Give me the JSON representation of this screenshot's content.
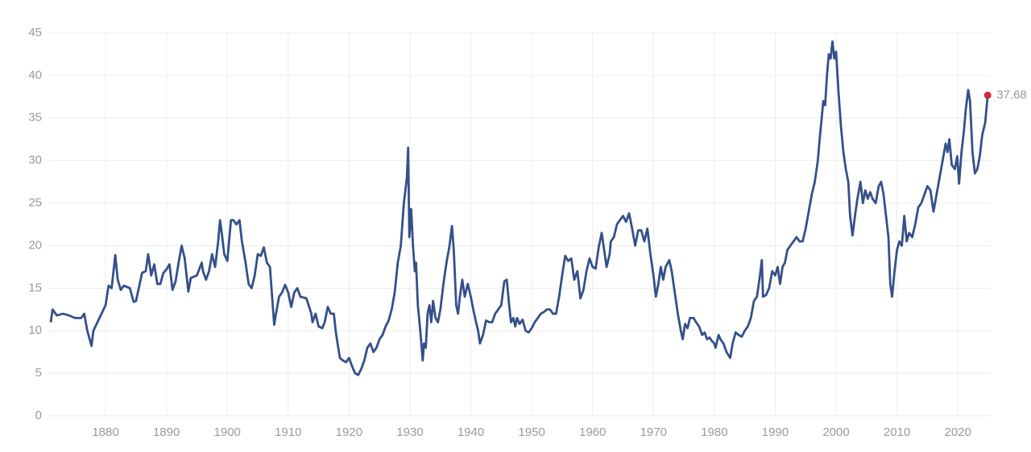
{
  "chart_data": {
    "type": "line",
    "x": [
      1871,
      1871.3,
      1872,
      1873,
      1874,
      1875,
      1876,
      1876.5,
      1877,
      1877.7,
      1878,
      1879,
      1880,
      1880.5,
      1881,
      1881.6,
      1882,
      1882.5,
      1883,
      1884,
      1884.6,
      1885,
      1886,
      1886.6,
      1887,
      1887.5,
      1888,
      1888.5,
      1889,
      1889.5,
      1890,
      1890.5,
      1891,
      1891.5,
      1892,
      1892.5,
      1893,
      1893.6,
      1894,
      1895,
      1895.8,
      1896,
      1896.5,
      1897,
      1897.5,
      1898,
      1898.5,
      1898.8,
      1899,
      1899.5,
      1900,
      1900.6,
      1901,
      1901.5,
      1902,
      1902.4,
      1903,
      1903.5,
      1904,
      1904.5,
      1905,
      1905.5,
      1906,
      1906.5,
      1907,
      1907.7,
      1908,
      1908.5,
      1909,
      1909.5,
      1910,
      1910.5,
      1911,
      1911.5,
      1912,
      1913,
      1913.8,
      1914,
      1914.5,
      1915,
      1915.6,
      1916,
      1916.5,
      1917,
      1917.5,
      1917.8,
      1918,
      1918.5,
      1919,
      1919.5,
      1920,
      1920.4,
      1920.8,
      1921,
      1921.5,
      1922,
      1922.5,
      1923,
      1923.5,
      1924,
      1924.5,
      1925,
      1925.5,
      1926,
      1926.5,
      1927,
      1927.5,
      1928,
      1928.5,
      1928.7,
      1929,
      1929.5,
      1929.7,
      1929.9,
      1930.2,
      1930.5,
      1930.8,
      1931,
      1931.3,
      1931.7,
      1932.1,
      1932.3,
      1932.6,
      1932.9,
      1933.2,
      1933.5,
      1933.8,
      1934.2,
      1934.6,
      1935,
      1935.5,
      1936,
      1936.5,
      1936.9,
      1937.2,
      1937.6,
      1937.9,
      1938.2,
      1938.6,
      1939,
      1939.5,
      1940,
      1940.4,
      1940.8,
      1941.2,
      1941.5,
      1942,
      1942.5,
      1943,
      1943.5,
      1944,
      1944.5,
      1945,
      1945.5,
      1945.9,
      1946.3,
      1946.6,
      1947,
      1947.3,
      1947.6,
      1948,
      1948.5,
      1949,
      1949.5,
      1950,
      1950.5,
      1951,
      1951.5,
      1952,
      1952.5,
      1953,
      1953.5,
      1954,
      1954.5,
      1955,
      1955.5,
      1956,
      1956.5,
      1957,
      1957.5,
      1958,
      1958.5,
      1959,
      1959.5,
      1960,
      1960.5,
      1961,
      1961.5,
      1962,
      1962.3,
      1962.8,
      1963,
      1963.5,
      1964,
      1964.5,
      1965,
      1965.5,
      1966,
      1966.5,
      1967,
      1967.5,
      1968,
      1968.5,
      1969,
      1969.5,
      1970,
      1970.4,
      1970.8,
      1971.2,
      1971.6,
      1972,
      1972.6,
      1973,
      1973.5,
      1974,
      1974.5,
      1974.8,
      1975.2,
      1975.6,
      1976,
      1976.6,
      1977,
      1977.5,
      1978,
      1978.4,
      1978.8,
      1979.2,
      1979.6,
      1980,
      1980.2,
      1980.7,
      1981,
      1981.5,
      1982,
      1982.6,
      1983,
      1983.5,
      1984,
      1984.5,
      1985,
      1985.5,
      1986,
      1986.5,
      1987,
      1987.5,
      1987.8,
      1988,
      1988.5,
      1989,
      1989.5,
      1990,
      1990.4,
      1990.8,
      1991.2,
      1991.6,
      1992,
      1992.5,
      1993,
      1993.5,
      1994,
      1994.5,
      1995,
      1995.5,
      1996,
      1996.5,
      1997,
      1997.3,
      1997.7,
      1997.9,
      1998.2,
      1998.5,
      1998.8,
      1999.1,
      1999.4,
      1999.7,
      2000,
      2000.4,
      2000.8,
      2001.2,
      2001.6,
      2002,
      2002.3,
      2002.7,
      2003.1,
      2003.5,
      2004,
      2004.4,
      2004.8,
      2005.2,
      2005.6,
      2006,
      2006.5,
      2007,
      2007.4,
      2007.8,
      2008.2,
      2008.6,
      2008.9,
      2009.2,
      2009.6,
      2010,
      2010.4,
      2010.8,
      2011.2,
      2011.6,
      2012,
      2012.5,
      2013,
      2013.5,
      2014,
      2014.5,
      2015,
      2015.5,
      2016,
      2016.5,
      2017,
      2017.5,
      2018,
      2018.3,
      2018.6,
      2019,
      2019.5,
      2019.9,
      2020.2,
      2020.6,
      2021,
      2021.3,
      2021.7,
      2022,
      2022.4,
      2022.8,
      2023.2,
      2023.6,
      2024,
      2024.5,
      2024.9
    ],
    "values": [
      11,
      12.5,
      11.8,
      12,
      11.8,
      11.5,
      11.5,
      12,
      10,
      8.2,
      10,
      11.5,
      13,
      15.3,
      15,
      18.9,
      16,
      14.8,
      15.3,
      15,
      13.4,
      13.5,
      16.8,
      17,
      19,
      16.5,
      17.8,
      15.5,
      15.5,
      16.8,
      17.2,
      17.8,
      14.8,
      15.8,
      18,
      20,
      18.5,
      14.6,
      16.2,
      16.5,
      18,
      17,
      16,
      17,
      19,
      17.5,
      20.5,
      23,
      22,
      19,
      18.2,
      23,
      23,
      22.5,
      23,
      20.5,
      18,
      15.5,
      15,
      16.5,
      19,
      18.8,
      19.8,
      18,
      17.5,
      10.7,
      12,
      14,
      14.5,
      15.4,
      14.5,
      12.8,
      14.5,
      15,
      14,
      13.8,
      12,
      11,
      12,
      10.5,
      10.3,
      11,
      12.8,
      12,
      12,
      10,
      9,
      6.8,
      6.5,
      6.3,
      6.8,
      6,
      5.3,
      5,
      4.8,
      5.5,
      6.5,
      8,
      8.5,
      7.5,
      8,
      9,
      9.5,
      10.5,
      11.2,
      12.5,
      14.5,
      18,
      20,
      22,
      25,
      28,
      31.5,
      21,
      24.3,
      20,
      17,
      18,
      13,
      10,
      6.5,
      8.5,
      8,
      12,
      13,
      11,
      13.5,
      11.5,
      11,
      12.5,
      15.5,
      18,
      20,
      22.3,
      19.5,
      13,
      12,
      14,
      16,
      14,
      15.5,
      14,
      12.5,
      11.2,
      10,
      8.5,
      9.5,
      11.2,
      11,
      11,
      12,
      12.5,
      13,
      15.8,
      16,
      13,
      11,
      11.5,
      10.5,
      11.5,
      10.8,
      11.3,
      10,
      9.8,
      10.3,
      11,
      11.5,
      12,
      12.2,
      12.5,
      12.5,
      12,
      12,
      14,
      16.5,
      18.8,
      18.2,
      18.5,
      16,
      17,
      13.8,
      14.8,
      17,
      18.5,
      17.5,
      17.3,
      19.8,
      21.5,
      19,
      17.5,
      19,
      20.5,
      21,
      22.5,
      23,
      23.5,
      22.8,
      23.8,
      22,
      20,
      21.8,
      21.8,
      20.5,
      22,
      19,
      16.5,
      14,
      15.5,
      17.5,
      16,
      17.5,
      18.3,
      17,
      14.5,
      12,
      10,
      9,
      10.8,
      10.3,
      11.5,
      11.5,
      11,
      10.5,
      9.5,
      9.8,
      9,
      9.2,
      8.8,
      8.5,
      8,
      9.5,
      9,
      8.5,
      7.5,
      6.8,
      8.5,
      9.8,
      9.5,
      9.3,
      10,
      10.5,
      11.5,
      13.5,
      14,
      16.5,
      18.3,
      14,
      14.2,
      15,
      17,
      16.5,
      17.5,
      15.5,
      17.5,
      18,
      19.5,
      20,
      20.5,
      21,
      20.5,
      20.5,
      22,
      24,
      26,
      27.5,
      30,
      32.5,
      35.5,
      37,
      36.5,
      40,
      42.5,
      42,
      44,
      42,
      42.8,
      38,
      34,
      31,
      29,
      27.5,
      23.5,
      21.2,
      23.5,
      25.5,
      27.5,
      25,
      26.5,
      25.5,
      26.3,
      25.5,
      25,
      27,
      27.5,
      26,
      23.5,
      21,
      15.5,
      14,
      17,
      19.5,
      20.5,
      20,
      23.5,
      20.5,
      21.5,
      21,
      22.5,
      24.5,
      25,
      26,
      27,
      26.5,
      24,
      26,
      28,
      30,
      32,
      31,
      32.5,
      29.5,
      29,
      30.5,
      27.3,
      31,
      33.5,
      36,
      38.3,
      37,
      31,
      28.5,
      29,
      30.5,
      33,
      34.5,
      37.68
    ],
    "color": "#34508a",
    "last_point_color": "#d3273e",
    "xlim": [
      1870.6,
      2025.4
    ],
    "xticks": [
      1880,
      1890,
      1900,
      1910,
      1920,
      1930,
      1940,
      1950,
      1960,
      1970,
      1980,
      1990,
      2000,
      2010,
      2020
    ],
    "ylim": [
      0,
      45
    ],
    "yticks": [
      0,
      5,
      10,
      15,
      20,
      25,
      30,
      35,
      40,
      45
    ],
    "grid": true
  }
}
